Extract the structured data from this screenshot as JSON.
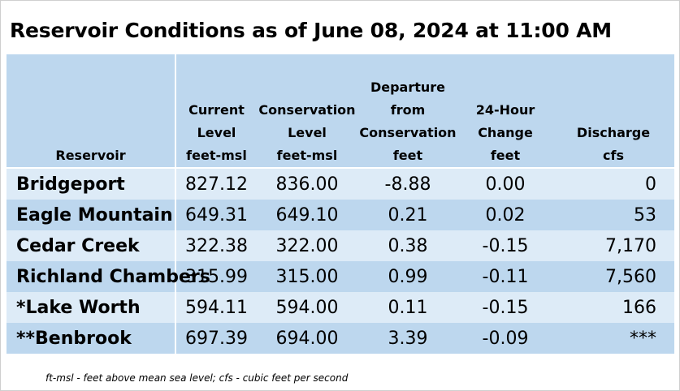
{
  "title": "Reservoir Conditions as of June 08, 2024 at 11:00 AM",
  "columns": [
    {
      "lines": [
        "Reservoir"
      ]
    },
    {
      "lines": [
        "Current",
        "Level",
        "feet-msl"
      ]
    },
    {
      "lines": [
        "Conservation",
        "Level",
        "feet-msl"
      ]
    },
    {
      "lines": [
        "Departure",
        "from",
        "Conservation",
        "feet"
      ]
    },
    {
      "lines": [
        "24-Hour",
        "Change",
        "feet"
      ]
    },
    {
      "lines": [
        "Discharge",
        "cfs"
      ]
    }
  ],
  "rows": [
    {
      "reservoir": "Bridgeport",
      "current": "827.12",
      "conservation": "836.00",
      "departure": "-8.88",
      "change": "0.00",
      "discharge": "0"
    },
    {
      "reservoir": "Eagle Mountain",
      "current": "649.31",
      "conservation": "649.10",
      "departure": "0.21",
      "change": "0.02",
      "discharge": "53"
    },
    {
      "reservoir": "Cedar Creek",
      "current": "322.38",
      "conservation": "322.00",
      "departure": "0.38",
      "change": "-0.15",
      "discharge": "7,170"
    },
    {
      "reservoir": "Richland Chambers",
      "current": "315.99",
      "conservation": "315.00",
      "departure": "0.99",
      "change": "-0.11",
      "discharge": "7,560"
    },
    {
      "reservoir": "*Lake Worth",
      "current": "594.11",
      "conservation": "594.00",
      "departure": "0.11",
      "change": "-0.15",
      "discharge": "166"
    },
    {
      "reservoir": "**Benbrook",
      "current": "697.39",
      "conservation": "694.00",
      "departure": "3.39",
      "change": "-0.09",
      "discharge": "***"
    }
  ],
  "footnote": "ft-msl - feet above mean sea level; cfs - cubic feet per second",
  "colors": {
    "header_bg": "#bdd7ee",
    "row_light": "#ddebf7",
    "row_dark": "#bdd7ee"
  }
}
